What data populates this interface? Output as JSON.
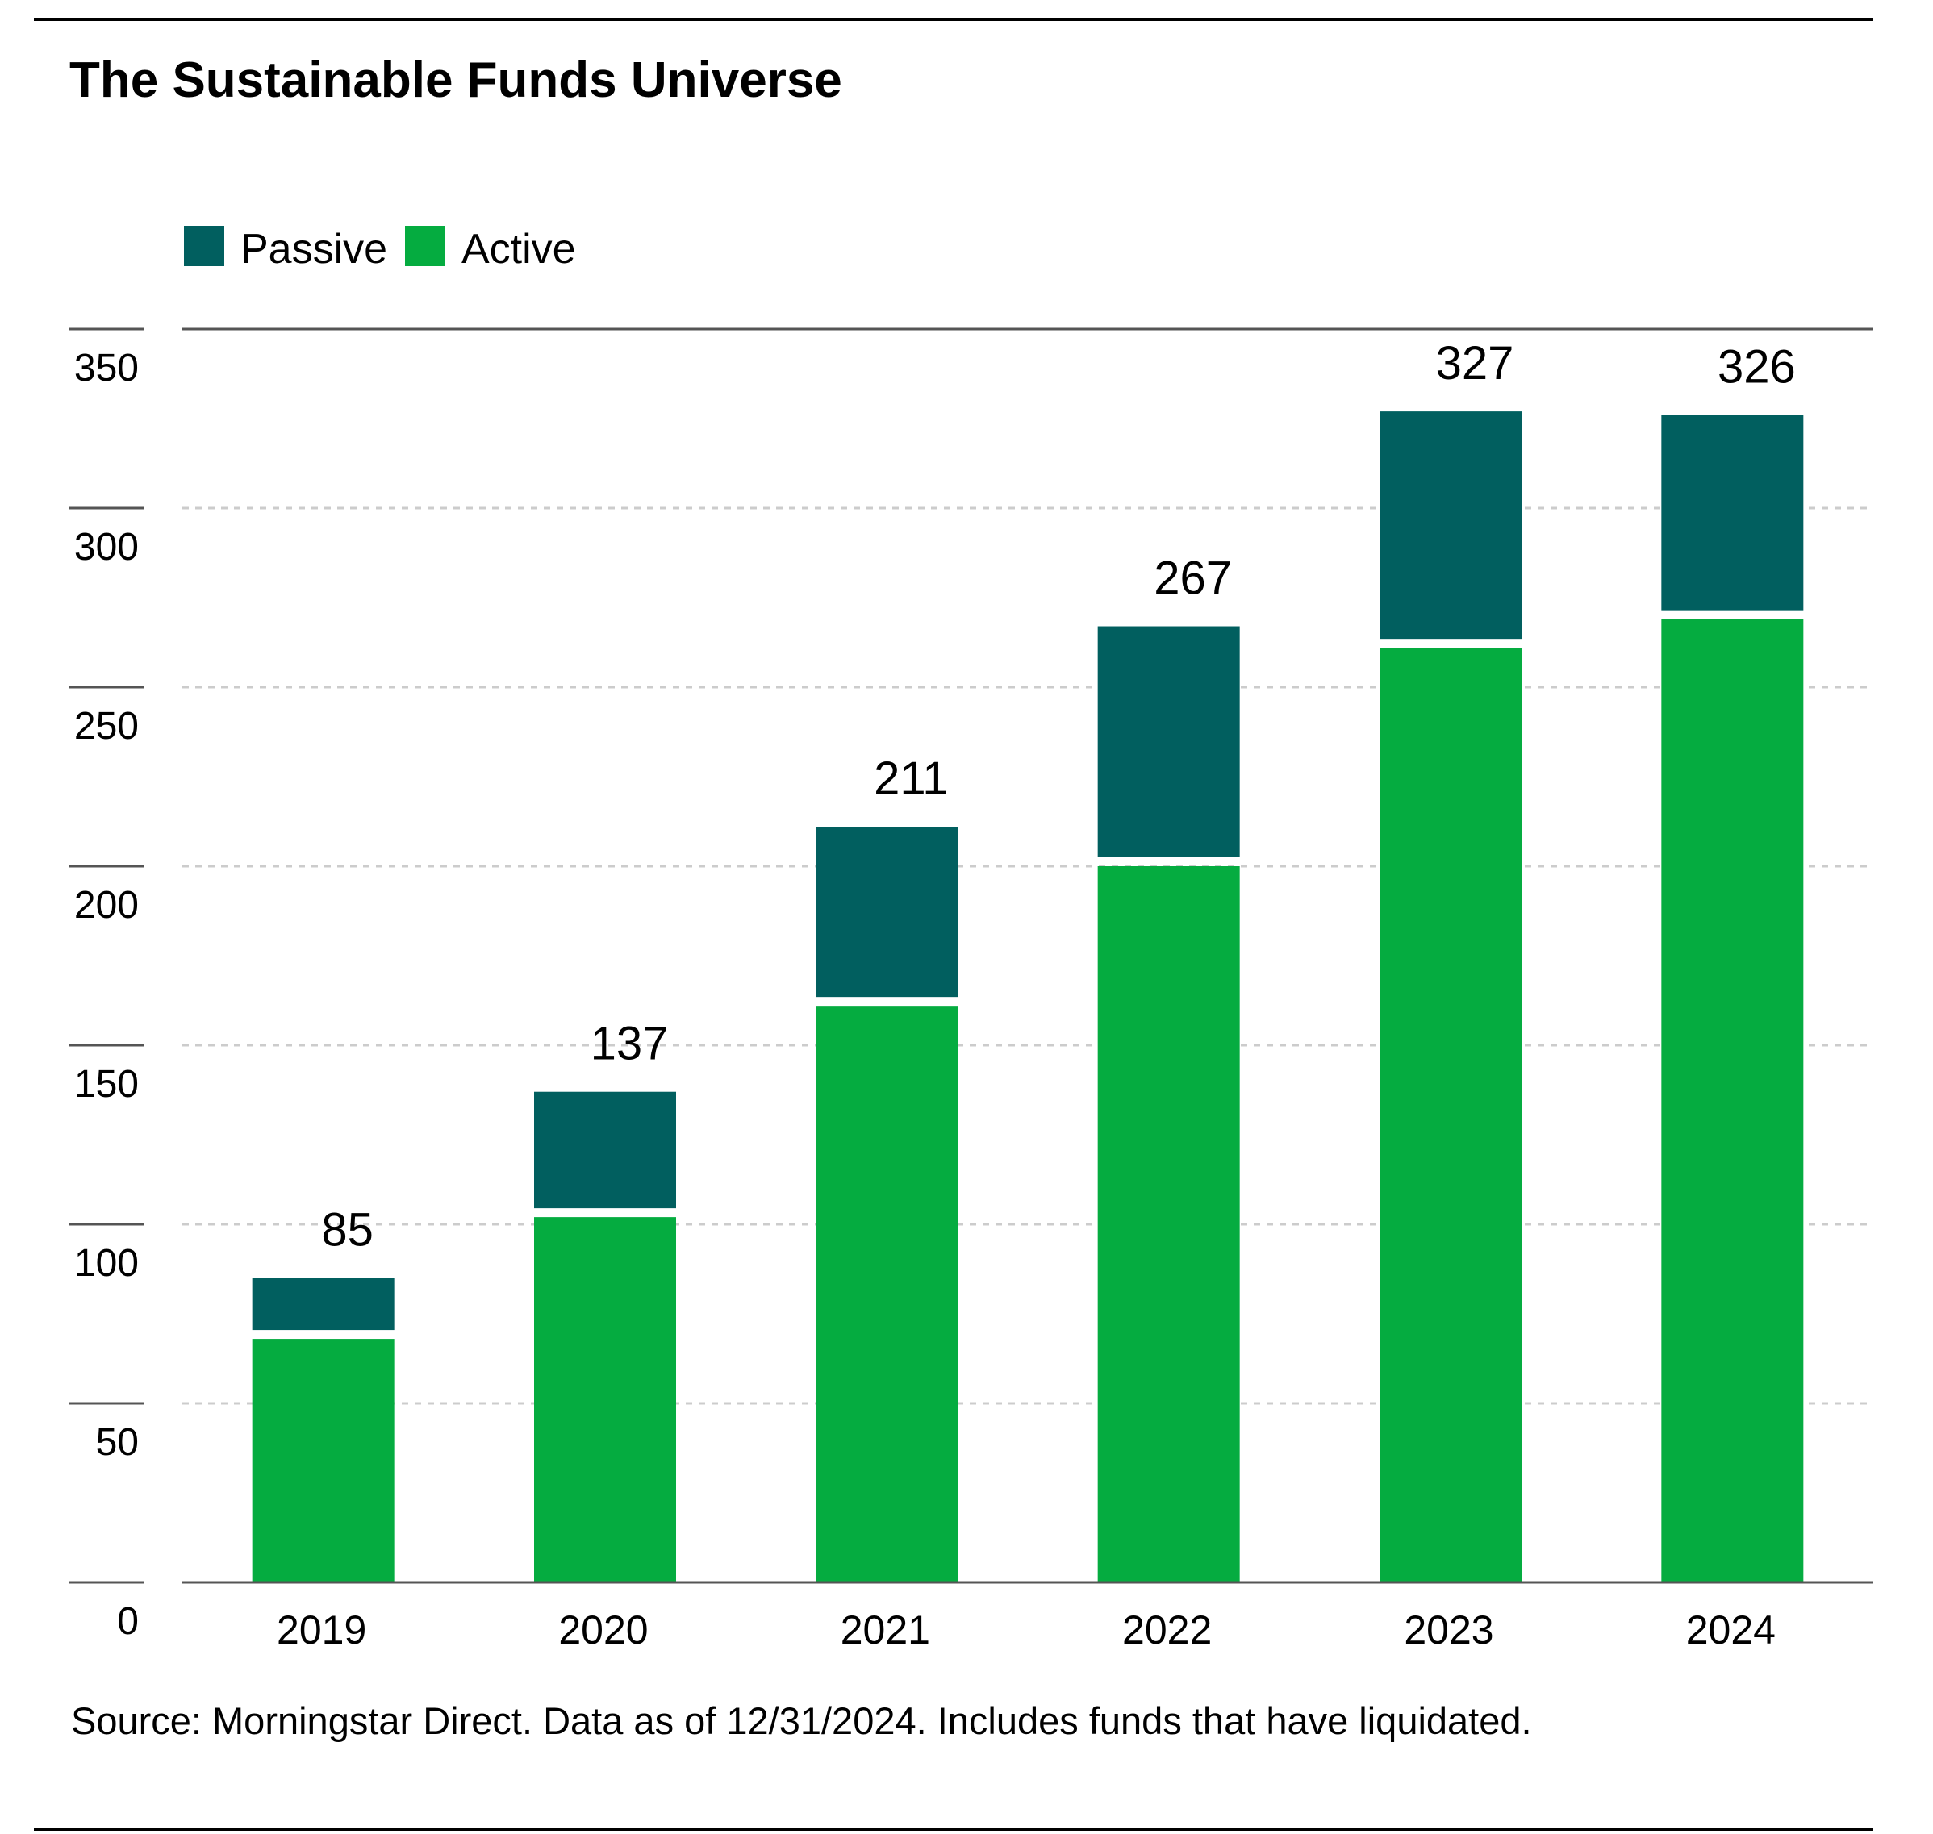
{
  "chart_data": {
    "type": "bar",
    "stacked": true,
    "title": "The Sustainable Funds Universe",
    "xlabel": "",
    "ylabel": "",
    "categories": [
      "2019",
      "2020",
      "2021",
      "2022",
      "2023",
      "2024"
    ],
    "series": [
      {
        "name": "Active",
        "color": "#05ac40",
        "values": [
          68,
          102,
          161,
          200,
          261,
          269
        ]
      },
      {
        "name": "Passive",
        "color": "#015f5f",
        "values": [
          17,
          35,
          50,
          67,
          66,
          57
        ]
      }
    ],
    "totals": [
      "85",
      "137",
      "211",
      "267",
      "327",
      "326"
    ],
    "legend": [
      {
        "name": "Passive",
        "color": "#015f5f"
      },
      {
        "name": "Active",
        "color": "#05ac40"
      }
    ],
    "legend_position": "top-left",
    "ylim": [
      0,
      350
    ],
    "yticks": [
      0,
      50,
      100,
      150,
      200,
      250,
      300,
      350
    ],
    "ytick_labels": [
      "0",
      "50",
      "100",
      "150",
      "200",
      "250",
      "300",
      "350"
    ],
    "grid": true,
    "source": "Source: Morningstar Direct. Data as of 12/31/2024.   Includes funds that have liquidated."
  }
}
